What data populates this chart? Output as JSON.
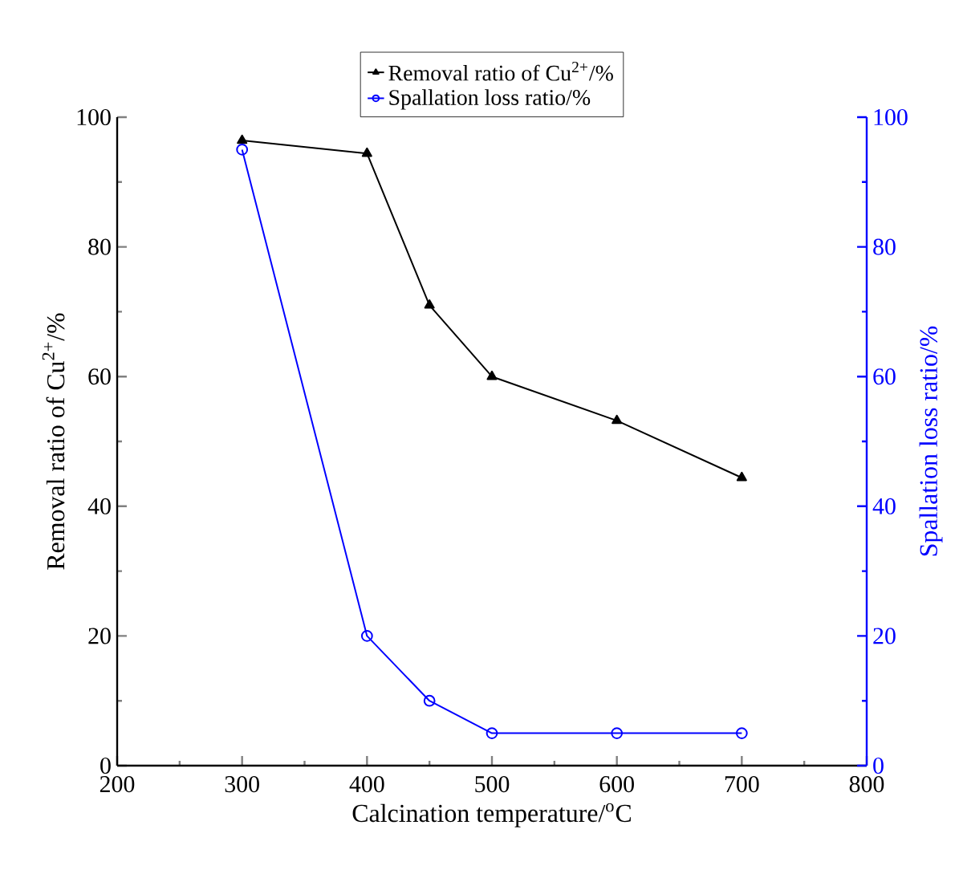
{
  "chart_data": {
    "type": "line",
    "xlabel": "Calcination temperature/$^{o}$C",
    "ylabel": "Removal ratio of Cu$^{2+}$/%",
    "y2label": "Spallation loss ratio/%",
    "x": [
      300,
      400,
      450,
      500,
      600,
      700
    ],
    "series": [
      {
        "name": "Removal ratio of Cu$^{2+}$/%",
        "color": "#000000",
        "marker": "triangle",
        "values": [
          96.4,
          94.4,
          71,
          60,
          53.2,
          44.4
        ]
      },
      {
        "name": "Spallation loss ratio/%",
        "color": "#0000ff",
        "marker": "circle",
        "axis": "y2",
        "values": [
          95,
          20,
          10,
          5,
          5,
          5
        ]
      }
    ],
    "xlim": [
      200,
      800
    ],
    "xticks": [
      200,
      300,
      400,
      500,
      600,
      700,
      800
    ],
    "ylim": [
      0,
      100
    ],
    "yticks": [
      0,
      20,
      40,
      60,
      80,
      100
    ],
    "y2lim": [
      0,
      100
    ],
    "y2ticks": [
      0,
      20,
      40,
      60,
      80,
      100
    ],
    "grid": false,
    "legend": "top",
    "line_style": "solid"
  }
}
